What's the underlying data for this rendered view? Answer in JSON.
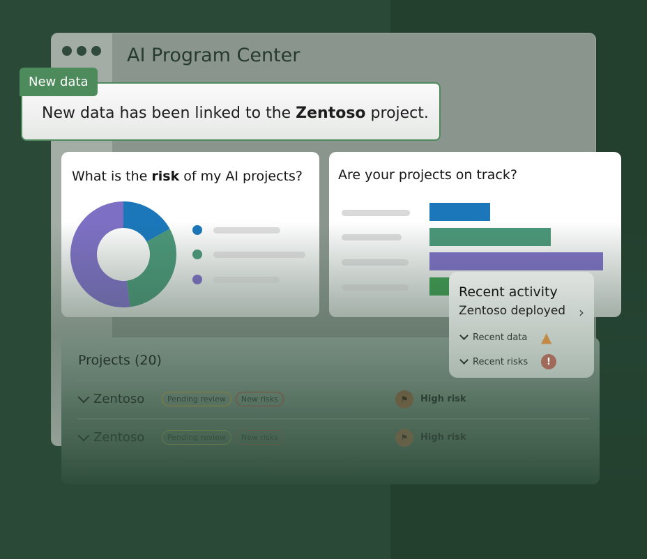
{
  "window": {
    "title": "AI Program Center"
  },
  "toast": {
    "tag": "New data",
    "prefix": "New data has been linked to the ",
    "project": "Zentoso",
    "suffix": " project."
  },
  "risk_card": {
    "title_pre": "What is the ",
    "title_bold": "risk",
    "title_post": " of my AI projects?",
    "donut": [
      {
        "color": "#1b77b9",
        "share": 17
      },
      {
        "color": "#4b9678",
        "share": 31
      },
      {
        "color": "#7d6fc3",
        "share": 52
      }
    ]
  },
  "track_card": {
    "title": "Are your projects on track?",
    "bars": [
      {
        "color": "#1b77b9",
        "value": 35
      },
      {
        "color": "#4b9678",
        "value": 70
      },
      {
        "color": "#7d6fc3",
        "value": 100
      },
      {
        "color": "#3f9a52",
        "value": 14
      }
    ]
  },
  "activity": {
    "title": "Recent activity",
    "item": "Zentoso deployed",
    "rows": [
      {
        "label": "Recent data",
        "icon": "warning-icon"
      },
      {
        "label": "Recent risks",
        "icon": "alert-icon"
      }
    ]
  },
  "projects": {
    "title": "Projects (20)",
    "rows": [
      {
        "name": "Zentoso",
        "tags": [
          "Pending review",
          "New risks"
        ],
        "risk": "High risk"
      },
      {
        "name": "Zentoso",
        "tags": [
          "Pending review",
          "New risks"
        ],
        "risk": "High risk"
      }
    ]
  },
  "colors": {
    "brand": "#4d8b5c",
    "background": "#2a4937"
  }
}
